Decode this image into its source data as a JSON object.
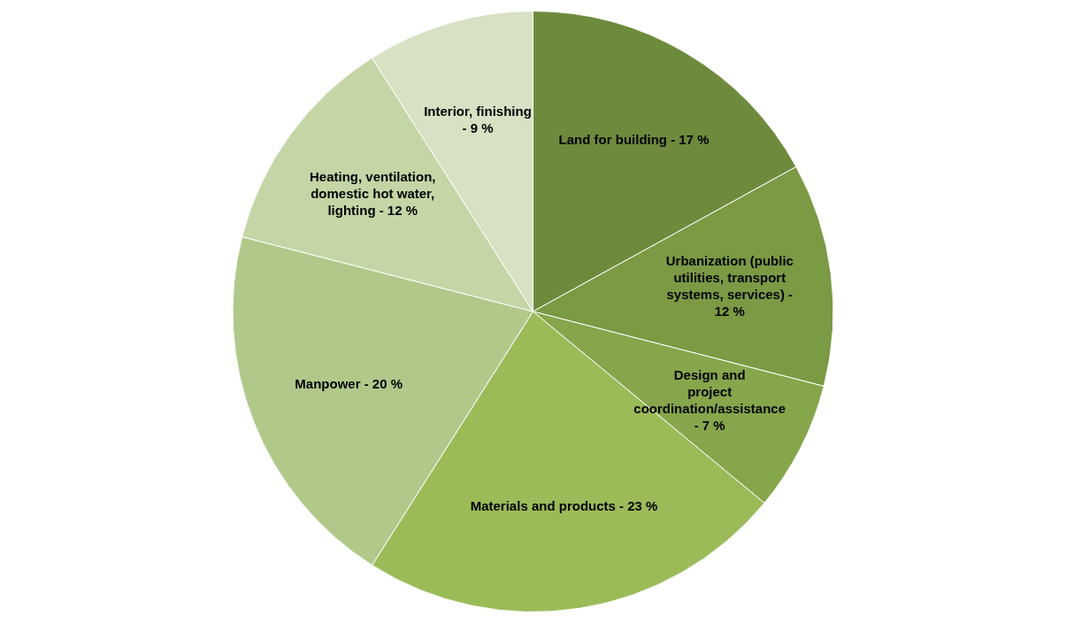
{
  "chart_data": {
    "type": "pie",
    "categories": [
      "Land for building - 17 %",
      "Urbanization (public utilities, transport systems, services) - 12 %",
      "Design and project coordination/assistance - 7 %",
      "Materials and products - 23 %",
      "Manpower - 20 %",
      "Heating, ventilation, domestic hot water, lighting - 12 %",
      "Interior, finishing - 9 %"
    ],
    "values": [
      17,
      12,
      7,
      23,
      20,
      12,
      9
    ],
    "colors": [
      "#6e8b3d",
      "#7a9a44",
      "#86a64c",
      "#9bbb59",
      "#b0c98a",
      "#c4d6a6",
      "#d6e2c3"
    ]
  }
}
